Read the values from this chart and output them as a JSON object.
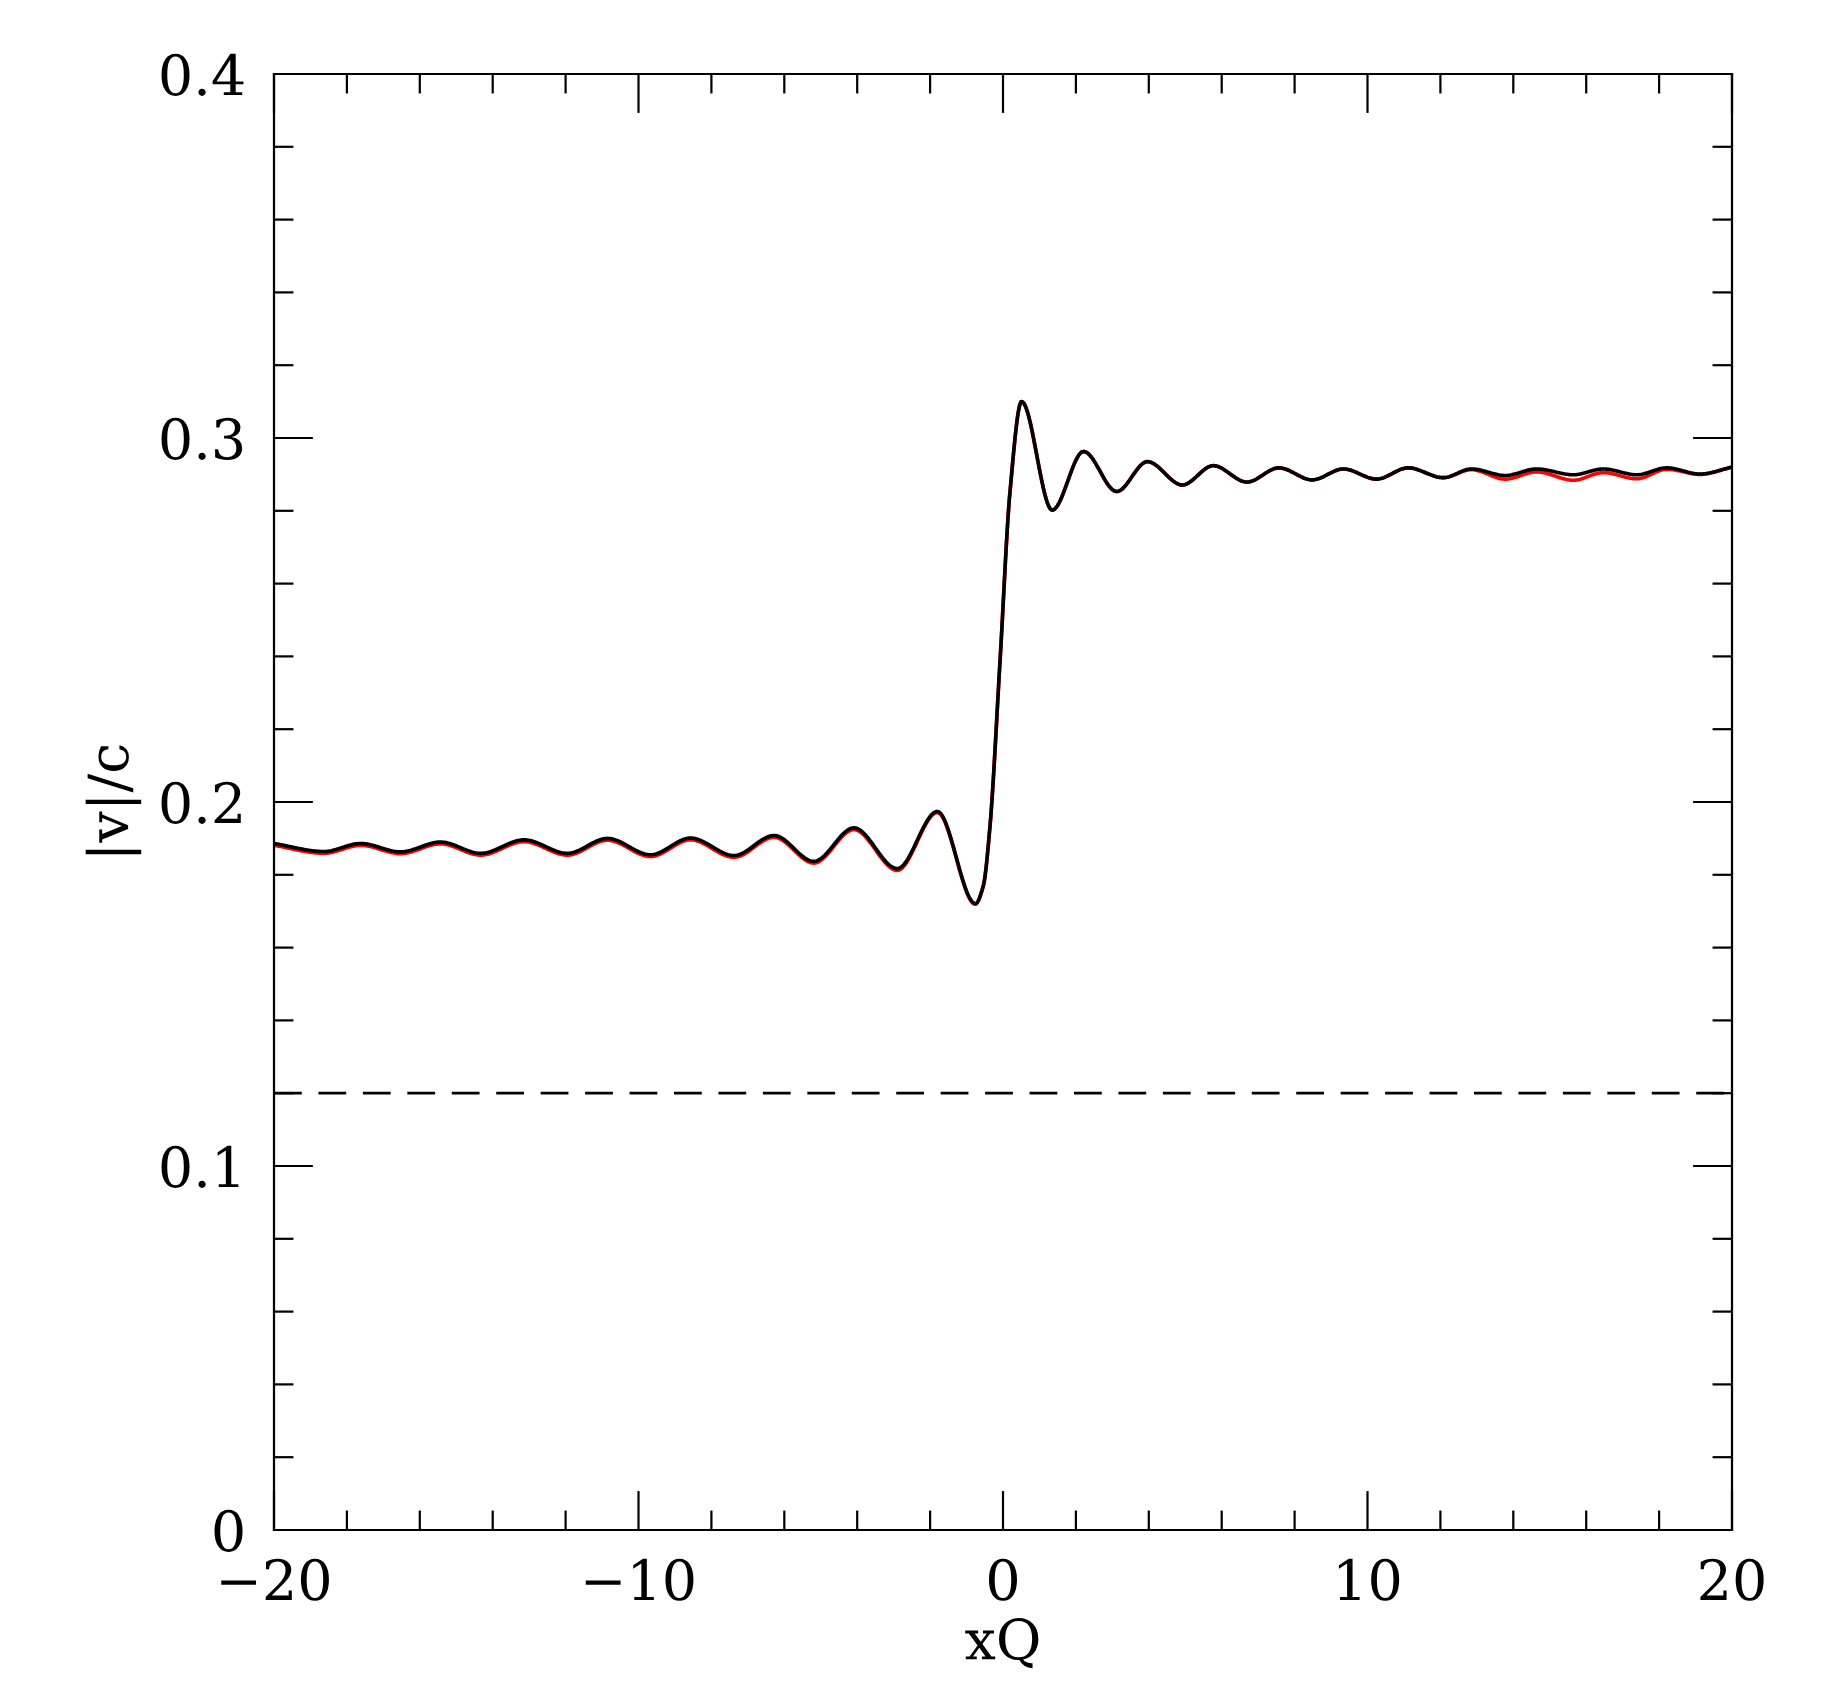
{
  "chart_data": {
    "type": "line",
    "xlabel": "xQ",
    "ylabel": "|v|/c",
    "x": [
      -20,
      -18.63,
      -17.62,
      -16.53,
      -15.43,
      -14.33,
      -13.14,
      -11.95,
      -10.85,
      -9.67,
      -8.57,
      -7.38,
      -6.28,
      -5.19,
      -4.09,
      -2.9,
      -1.8,
      -0.76,
      -0.54,
      -0.36,
      -0.08,
      0.19,
      0.51,
      1.35,
      2.21,
      3.12,
      3.96,
      4.92,
      5.77,
      6.69,
      7.57,
      8.48,
      9.34,
      10.25,
      11.11,
      12.08,
      12.85,
      13.78,
      14.64,
      15.65,
      16.47,
      17.39,
      18.21,
      19.12,
      20
    ],
    "series": [
      {
        "color": "#ff0000",
        "values": [
          0.1881,
          0.1859,
          0.1881,
          0.1858,
          0.1885,
          0.1854,
          0.1891,
          0.1854,
          0.1895,
          0.185,
          0.1896,
          0.1848,
          0.1903,
          0.1832,
          0.1924,
          0.1812,
          0.1971,
          0.1719,
          0.177,
          0.193,
          0.239,
          0.285,
          0.31,
          0.2802,
          0.2963,
          0.2853,
          0.2935,
          0.2871,
          0.2924,
          0.2879,
          0.2918,
          0.2885,
          0.2915,
          0.2887,
          0.2918,
          0.2891,
          0.2913,
          0.2887,
          0.2907,
          0.2884,
          0.2905,
          0.2888,
          0.2914,
          0.29,
          0.292
        ]
      },
      {
        "color": "#000000",
        "values": [
          0.1886,
          0.1864,
          0.1886,
          0.1863,
          0.189,
          0.1859,
          0.1896,
          0.1859,
          0.19,
          0.1855,
          0.1901,
          0.1853,
          0.1908,
          0.1837,
          0.1929,
          0.1817,
          0.1974,
          0.1721,
          0.177,
          0.193,
          0.239,
          0.285,
          0.31,
          0.2802,
          0.2963,
          0.2853,
          0.2935,
          0.2871,
          0.2924,
          0.2879,
          0.2918,
          0.2885,
          0.2915,
          0.2887,
          0.2918,
          0.2891,
          0.2915,
          0.2897,
          0.2915,
          0.2899,
          0.2915,
          0.2899,
          0.2918,
          0.2901,
          0.292
        ]
      }
    ],
    "ref_lines": [
      {
        "axis": "y",
        "value": 0.12,
        "color": "#000000",
        "line_style": "dashed"
      }
    ],
    "xlim": [
      -20,
      20
    ],
    "ylim": [
      0,
      0.4
    ],
    "xticks": [
      {
        "value": -20,
        "label": "−20"
      },
      {
        "value": -18,
        "label": null
      },
      {
        "value": -16,
        "label": null
      },
      {
        "value": -14,
        "label": null
      },
      {
        "value": -12,
        "label": null
      },
      {
        "value": -10,
        "label": "−10"
      },
      {
        "value": -8,
        "label": null
      },
      {
        "value": -6,
        "label": null
      },
      {
        "value": -4,
        "label": null
      },
      {
        "value": -2,
        "label": null
      },
      0,
      {
        "value": 2,
        "label": null
      },
      {
        "value": 4,
        "label": null
      },
      {
        "value": 6,
        "label": null
      },
      {
        "value": 8,
        "label": null
      },
      10,
      {
        "value": 12,
        "label": null
      },
      {
        "value": 14,
        "label": null
      },
      {
        "value": 16,
        "label": null
      },
      {
        "value": 18,
        "label": null
      },
      20
    ],
    "yticks": [
      0,
      {
        "value": 0.02,
        "label": null
      },
      {
        "value": 0.04,
        "label": null
      },
      {
        "value": 0.06,
        "label": null
      },
      {
        "value": 0.08,
        "label": null
      },
      0.1,
      {
        "value": 0.12,
        "label": null
      },
      {
        "value": 0.14,
        "label": null
      },
      {
        "value": 0.16,
        "label": null
      },
      {
        "value": 0.18,
        "label": null
      },
      0.2,
      {
        "value": 0.22,
        "label": null
      },
      {
        "value": 0.24,
        "label": null
      },
      {
        "value": 0.26,
        "label": null
      },
      {
        "value": 0.28,
        "label": null
      },
      0.3,
      {
        "value": 0.32,
        "label": null
      },
      {
        "value": 0.34,
        "label": null
      },
      {
        "value": 0.36,
        "label": null
      },
      {
        "value": 0.38,
        "label": null
      },
      0.4
    ],
    "grid": false,
    "legend": false,
    "marker": "none",
    "line_style": "solid"
  }
}
